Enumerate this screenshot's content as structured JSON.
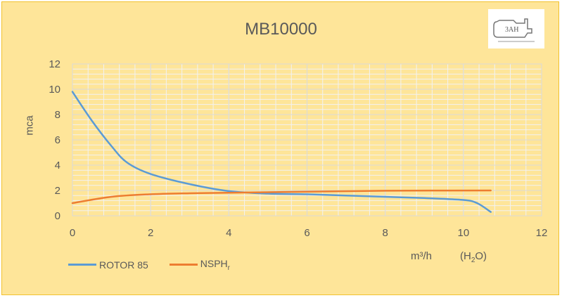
{
  "chart_data": {
    "type": "line",
    "title": "MB10000",
    "xlabel": "m³/h   (H₂O)",
    "ylabel": "mca",
    "xlim": [
      0,
      12
    ],
    "ylim": [
      0,
      12
    ],
    "x_ticks": [
      0,
      2,
      4,
      6,
      8,
      10,
      12
    ],
    "y_ticks": [
      0,
      2,
      4,
      6,
      8,
      10,
      12
    ],
    "grid": true,
    "legend_position": "bottom-left",
    "series": [
      {
        "name": "ROTOR 85",
        "color": "#5b9bd5",
        "x": [
          0,
          0.5,
          1.0,
          1.4,
          2.0,
          3.0,
          4.0,
          5.0,
          6.0,
          7.0,
          8.0,
          9.0,
          10.0,
          10.35,
          10.7
        ],
        "y": [
          9.8,
          7.5,
          5.5,
          4.2,
          3.3,
          2.5,
          1.95,
          1.75,
          1.7,
          1.6,
          1.5,
          1.4,
          1.25,
          1.0,
          0.3
        ]
      },
      {
        "name": "NSPHr",
        "color": "#ed7d31",
        "x": [
          0,
          1.0,
          2.0,
          3.0,
          4.0,
          6.0,
          8.0,
          10.7
        ],
        "y": [
          1.0,
          1.5,
          1.7,
          1.78,
          1.82,
          1.9,
          1.98,
          2.0
        ]
      }
    ]
  },
  "header": {
    "title": "MB10000",
    "logo_text": "3AH"
  },
  "axes": {
    "ylabel": "mca",
    "x_unit": "m³/h",
    "x_unit_medium": "(H₂O)",
    "y_ticks": [
      "0",
      "2",
      "4",
      "6",
      "8",
      "10",
      "12"
    ],
    "x_ticks": [
      "0",
      "2",
      "4",
      "6",
      "8",
      "10",
      "12"
    ]
  },
  "legend": {
    "items": [
      {
        "label": "ROTOR 85",
        "color": "#5b9bd5"
      },
      {
        "label": "NSPH",
        "sub": "r",
        "color": "#ed7d31"
      }
    ]
  }
}
